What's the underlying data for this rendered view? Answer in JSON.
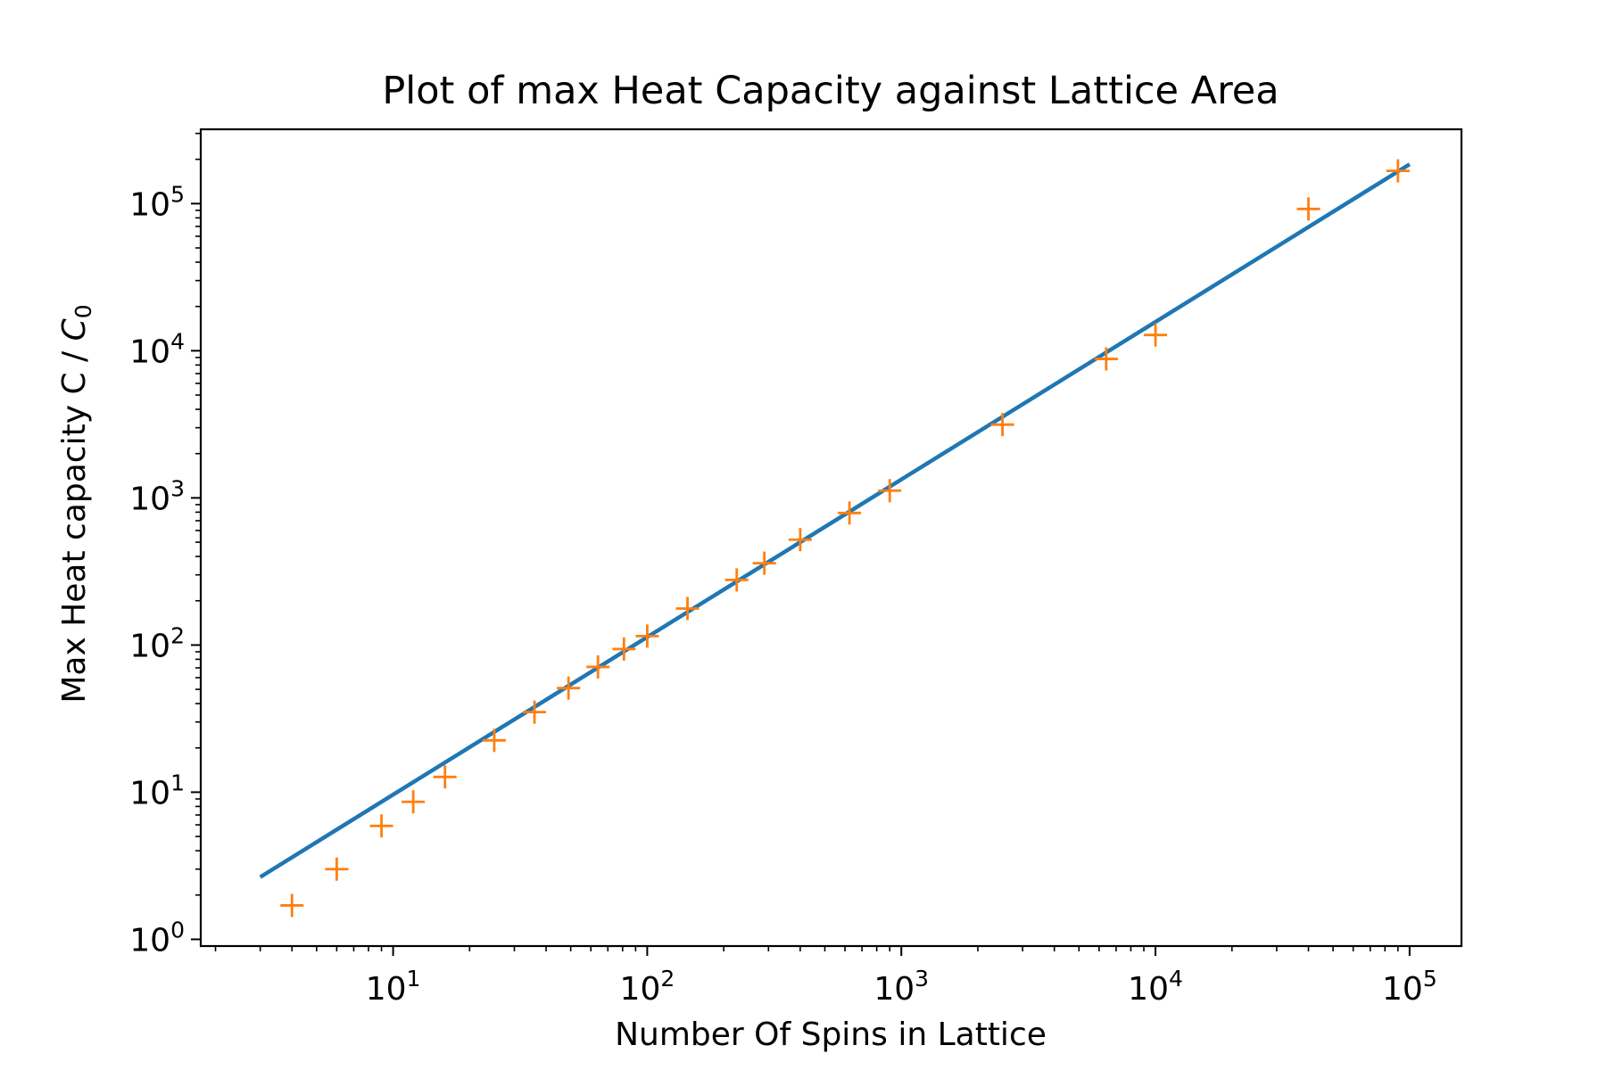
{
  "chart_data": {
    "type": "scatter",
    "title": "Plot of max Heat Capacity against Lattice Area",
    "xlabel": "Number Of Spins in Lattice",
    "ylabel": "Max Heat capacity C / ",
    "ylabel_symbol": "C",
    "ylabel_subscript": "0",
    "xscale": "log",
    "yscale": "log",
    "xlim": [
      1.75,
      160000
    ],
    "ylim": [
      0.9,
      320000
    ],
    "grid": false,
    "x_ticks": [
      {
        "value": 10,
        "base": "10",
        "exp": "1"
      },
      {
        "value": 100,
        "base": "10",
        "exp": "2"
      },
      {
        "value": 1000,
        "base": "10",
        "exp": "3"
      },
      {
        "value": 10000,
        "base": "10",
        "exp": "4"
      },
      {
        "value": 100000,
        "base": "10",
        "exp": "5"
      }
    ],
    "y_ticks": [
      {
        "value": 1,
        "base": "10",
        "exp": "0"
      },
      {
        "value": 10,
        "base": "10",
        "exp": "1"
      },
      {
        "value": 100,
        "base": "10",
        "exp": "2"
      },
      {
        "value": 1000,
        "base": "10",
        "exp": "3"
      },
      {
        "value": 10000,
        "base": "10",
        "exp": "4"
      },
      {
        "value": 100000,
        "base": "10",
        "exp": "5"
      }
    ],
    "series": [
      {
        "kind": "line",
        "color": "#1f77b4",
        "x": [
          3,
          100000
        ],
        "y": [
          2.65,
          185000
        ]
      },
      {
        "kind": "scatter",
        "marker": "+",
        "color": "#ff7f0e",
        "x": [
          4,
          6,
          9,
          12,
          16,
          25,
          36,
          49,
          64,
          81,
          100,
          144,
          225,
          289,
          400,
          625,
          900,
          2500,
          6400,
          10000,
          40000,
          90000
        ],
        "y": [
          1.7,
          3.0,
          5.9,
          8.6,
          12.7,
          22.5,
          35,
          51,
          71,
          94,
          115,
          177,
          277,
          360,
          520,
          790,
          1120,
          3150,
          8800,
          12800,
          92000,
          167000
        ]
      }
    ]
  }
}
